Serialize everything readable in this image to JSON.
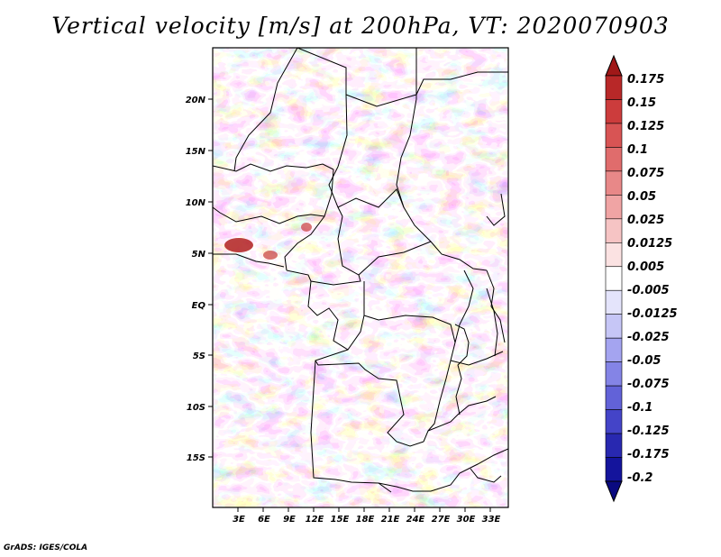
{
  "title": "Vertical velocity [m/s] at 200hPa, VT: 2020070903",
  "footer": "GrADS: IGES/COLA",
  "map": {
    "region": "Central Africa",
    "lat_labels": [
      "20N",
      "15N",
      "10N",
      "5N",
      "EQ",
      "5S",
      "10S",
      "15S"
    ],
    "lat_values": [
      20,
      15,
      10,
      5,
      0,
      -5,
      -10,
      -15
    ],
    "lon_labels": [
      "3E",
      "6E",
      "9E",
      "12E",
      "15E",
      "18E",
      "21E",
      "24E",
      "27E",
      "30E",
      "33E"
    ],
    "lon_values": [
      3,
      6,
      9,
      12,
      15,
      18,
      21,
      24,
      27,
      30,
      33
    ],
    "lat_range": [
      -20,
      25
    ],
    "lon_range": [
      0,
      35
    ]
  },
  "colorbar": {
    "labels": [
      "0.175",
      "0.15",
      "0.125",
      "0.1",
      "0.075",
      "0.05",
      "0.025",
      "0.0125",
      "0.005",
      "-0.005",
      "-0.0125",
      "-0.025",
      "-0.05",
      "-0.075",
      "-0.1",
      "-0.125",
      "-0.175",
      "-0.2"
    ],
    "colors": [
      "#a01818",
      "#b82828",
      "#cc3c3c",
      "#d85454",
      "#e06c6c",
      "#e88888",
      "#f0a4a4",
      "#f6c4c4",
      "#fbe2e2",
      "#ffffff",
      "#e4e4fb",
      "#c6c6f6",
      "#a4a4f0",
      "#8484e6",
      "#6262d8",
      "#4444c8",
      "#2828b0",
      "#14149c",
      "#0a0a80"
    ]
  }
}
